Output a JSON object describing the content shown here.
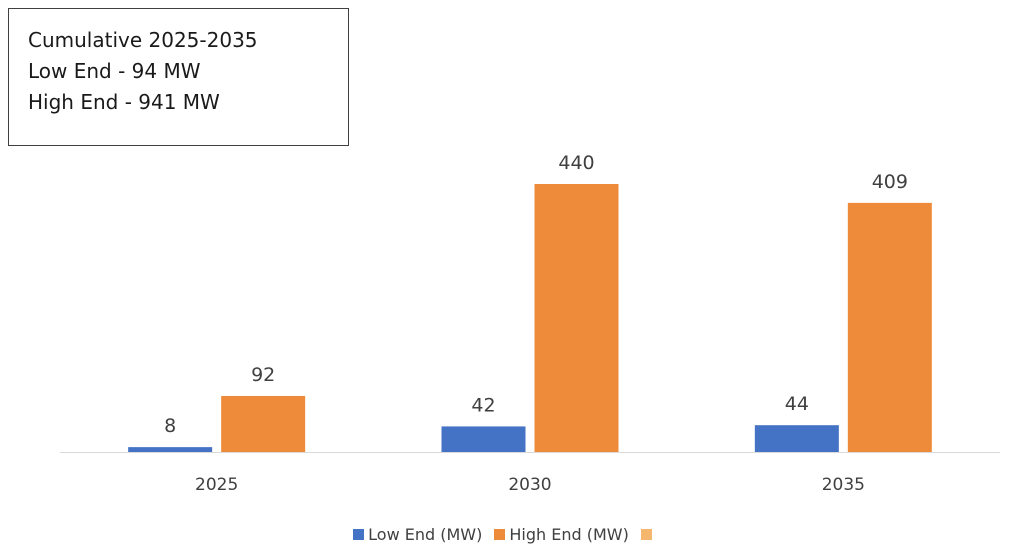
{
  "annotation": {
    "line1": "Cumulative 2025-2035",
    "line2": "Low End - 94 MW",
    "line3": "High End - 941 MW"
  },
  "colors": {
    "low": "#4472C4",
    "high": "#ED8B3A",
    "third": "#F5B66E",
    "axis": "#D9D9D9",
    "text": "#404040"
  },
  "chart_data": {
    "type": "bar",
    "categories": [
      "2025",
      "2030",
      "2035"
    ],
    "series": [
      {
        "name": "Low End (MW)",
        "values": [
          8,
          42,
          44
        ],
        "color": "#4472C4"
      },
      {
        "name": "High End (MW)",
        "values": [
          92,
          440,
          409
        ],
        "color": "#ED8B3A"
      },
      {
        "name": "",
        "values": [
          0,
          0,
          0
        ],
        "color": "#F5B66E"
      }
    ],
    "data_labels": true,
    "ylim": [
      0,
      440
    ],
    "grid": false,
    "legend_position": "bottom",
    "title": "",
    "xlabel": "",
    "ylabel": ""
  }
}
